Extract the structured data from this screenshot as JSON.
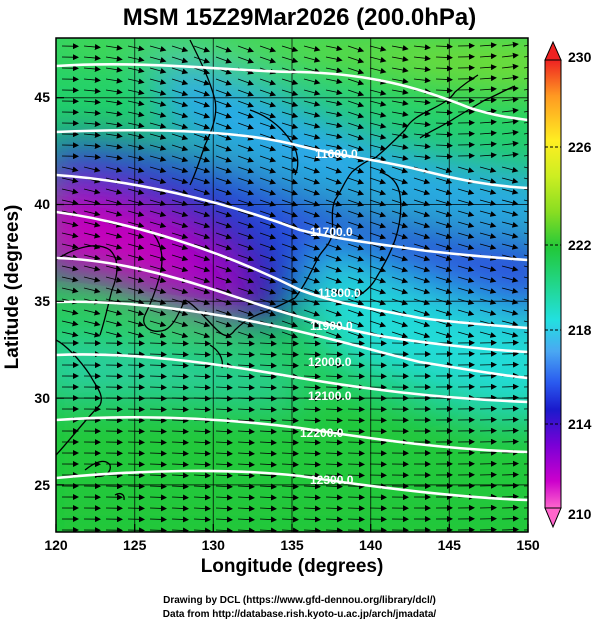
{
  "title": "MSM 15Z29Mar2026 (200.0hPa)",
  "axes": {
    "xlabel": "Longitude (degrees)",
    "ylabel": "Latitude  (degrees)",
    "xticks": [
      "120",
      "125",
      "130",
      "135",
      "140",
      "145",
      "150"
    ],
    "yticks": [
      "25",
      "30",
      "35",
      "40",
      "45"
    ],
    "xlim": [
      120,
      150
    ],
    "ylim": [
      22.5,
      48
    ]
  },
  "colorbar": {
    "ticks": [
      "230",
      "226",
      "222",
      "218",
      "214",
      "210"
    ],
    "min": 210,
    "max": 230,
    "colors": [
      "#ff66cc",
      "#cc00cc",
      "#7a00d6",
      "#1a1acc",
      "#2a5aef",
      "#4aa8f2",
      "#22e0e0",
      "#22d68a",
      "#22c83a",
      "#88dd22",
      "#ccee22",
      "#ffee22",
      "#ff9922",
      "#ee2222"
    ]
  },
  "contours": [
    {
      "label": "11600.0"
    },
    {
      "label": "11700.0"
    },
    {
      "label": "11800.0"
    },
    {
      "label": "11900.0"
    },
    {
      "label": "12000.0"
    },
    {
      "label": "12100.0"
    },
    {
      "label": "12200.0"
    },
    {
      "label": "12300.0"
    }
  ],
  "credits": {
    "line1": "Drawing by DCL (https://www.gfd-dennou.org/library/dcl/)",
    "line2": "Data from http://database.rish.kyoto-u.ac.jp/arch/jmadata/"
  }
}
